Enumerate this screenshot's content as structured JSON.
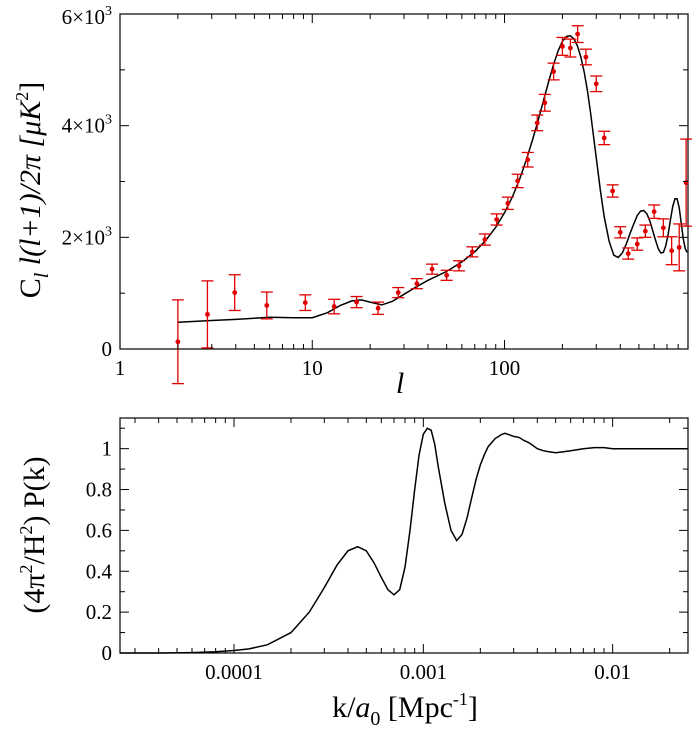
{
  "chart_data": [
    {
      "type": "scatter",
      "xscale": "log",
      "xlim": [
        1,
        900
      ],
      "ylim": [
        0,
        6000
      ],
      "xticks": [
        1,
        10,
        100
      ],
      "xtick_labels": [
        "1",
        "10",
        "100"
      ],
      "yticks": [
        0,
        2000,
        4000,
        6000
      ],
      "ytick_labels": [
        {
          "base": "0",
          "exp": ""
        },
        {
          "base": "2×10",
          "exp": "3"
        },
        {
          "base": "4×10",
          "exp": "3"
        },
        {
          "base": "6×10",
          "exp": "3"
        }
      ],
      "xlabel": "l",
      "ylabel": {
        "c": "C",
        "c_sub": "l",
        "mid": " l(l+1)/2π [μK",
        "sup": "2",
        "end": "]"
      },
      "points": [
        {
          "x": 2,
          "y": 130,
          "err": 750
        },
        {
          "x": 2.85,
          "y": 620,
          "err": 600
        },
        {
          "x": 3.95,
          "y": 1010,
          "err": 320
        },
        {
          "x": 5.8,
          "y": 780,
          "err": 240
        },
        {
          "x": 9.2,
          "y": 830,
          "err": 140
        },
        {
          "x": 13,
          "y": 760,
          "err": 130
        },
        {
          "x": 17,
          "y": 840,
          "err": 100
        },
        {
          "x": 22,
          "y": 730,
          "err": 110
        },
        {
          "x": 28,
          "y": 1010,
          "err": 90
        },
        {
          "x": 35,
          "y": 1170,
          "err": 90
        },
        {
          "x": 42,
          "y": 1430,
          "err": 90
        },
        {
          "x": 50,
          "y": 1320,
          "err": 90
        },
        {
          "x": 58,
          "y": 1490,
          "err": 90
        },
        {
          "x": 68,
          "y": 1740,
          "err": 90
        },
        {
          "x": 79,
          "y": 1960,
          "err": 100
        },
        {
          "x": 91,
          "y": 2320,
          "err": 100
        },
        {
          "x": 104,
          "y": 2610,
          "err": 110
        },
        {
          "x": 117,
          "y": 3010,
          "err": 120
        },
        {
          "x": 132,
          "y": 3390,
          "err": 130
        },
        {
          "x": 148,
          "y": 4050,
          "err": 140
        },
        {
          "x": 162,
          "y": 4410,
          "err": 150
        },
        {
          "x": 180,
          "y": 4970,
          "err": 150
        },
        {
          "x": 200,
          "y": 5420,
          "err": 160
        },
        {
          "x": 220,
          "y": 5390,
          "err": 160
        },
        {
          "x": 240,
          "y": 5640,
          "err": 150
        },
        {
          "x": 265,
          "y": 5230,
          "err": 140
        },
        {
          "x": 300,
          "y": 4750,
          "err": 140
        },
        {
          "x": 330,
          "y": 3780,
          "err": 120
        },
        {
          "x": 365,
          "y": 2830,
          "err": 110
        },
        {
          "x": 400,
          "y": 2090,
          "err": 100
        },
        {
          "x": 440,
          "y": 1710,
          "err": 100
        },
        {
          "x": 490,
          "y": 1880,
          "err": 110
        },
        {
          "x": 540,
          "y": 2110,
          "err": 110
        },
        {
          "x": 600,
          "y": 2460,
          "err": 120
        },
        {
          "x": 670,
          "y": 2170,
          "err": 160
        },
        {
          "x": 740,
          "y": 1760,
          "err": 250
        },
        {
          "x": 810,
          "y": 1820,
          "err": 420
        },
        {
          "x": 880,
          "y": 2980,
          "err": 780
        }
      ],
      "curve": {
        "x": [
          2,
          3,
          4,
          5,
          6,
          8,
          10,
          12,
          14,
          16,
          18,
          20,
          23,
          26,
          30,
          35,
          40,
          50,
          60,
          70,
          80,
          90,
          100,
          110,
          120,
          130,
          140,
          150,
          160,
          170,
          180,
          190,
          200,
          210,
          220,
          230,
          240,
          250,
          260,
          270,
          280,
          290,
          300,
          315,
          330,
          350,
          370,
          390,
          410,
          430,
          450,
          470,
          490,
          510,
          530,
          550,
          570,
          590,
          610,
          630,
          650,
          670,
          690,
          710,
          730,
          750,
          770,
          790,
          810,
          830,
          850,
          870,
          890
        ],
        "y": [
          480,
          510,
          530,
          550,
          570,
          560,
          560,
          650,
          780,
          860,
          880,
          840,
          790,
          850,
          980,
          1120,
          1230,
          1390,
          1560,
          1740,
          1950,
          2180,
          2440,
          2730,
          3050,
          3390,
          3750,
          4110,
          4470,
          4800,
          5100,
          5340,
          5510,
          5600,
          5610,
          5550,
          5420,
          5220,
          4950,
          4620,
          4240,
          3830,
          3420,
          2850,
          2370,
          1930,
          1680,
          1640,
          1720,
          1880,
          2070,
          2240,
          2390,
          2470,
          2480,
          2420,
          2290,
          2120,
          1950,
          1800,
          1720,
          1730,
          1850,
          2060,
          2320,
          2560,
          2690,
          2690,
          2530,
          2260,
          1980,
          1800,
          1730
        ]
      }
    },
    {
      "type": "line",
      "xscale": "log",
      "xlim": [
        2.5e-05,
        0.025
      ],
      "ylim": [
        0,
        1.15
      ],
      "xticks": [
        0.0001,
        0.001,
        0.01
      ],
      "xtick_labels": [
        "0.0001",
        "0.001",
        "0.01"
      ],
      "yticks": [
        0,
        0.2,
        0.4,
        0.6,
        0.8,
        1
      ],
      "ytick_labels": [
        "0",
        "0.2",
        "0.4",
        "0.6",
        "0.8",
        "1"
      ],
      "xlabel": {
        "a": "k/",
        "b": "a",
        "b_sub": "0",
        "c": " [Mpc",
        "c_sup": "-1",
        "d": "]"
      },
      "ylabel": {
        "a": "(4π",
        "a_sup": "2",
        "b": "/H",
        "b_sup": "2",
        "c": ") P(k)"
      },
      "curve": {
        "x": [
          2.5e-05,
          4e-05,
          6e-05,
          8e-05,
          0.0001,
          0.00012,
          0.00015,
          0.0002,
          0.00025,
          0.0003,
          0.00035,
          0.0004,
          0.00045,
          0.0005,
          0.00055,
          0.0006,
          0.00065,
          0.0007,
          0.00075,
          0.0008,
          0.00085,
          0.0009,
          0.00095,
          0.001,
          0.00105,
          0.0011,
          0.00115,
          0.0012,
          0.0013,
          0.0014,
          0.0015,
          0.0016,
          0.0017,
          0.0018,
          0.0019,
          0.002,
          0.0021,
          0.0022,
          0.0023,
          0.0024,
          0.0025,
          0.0026,
          0.0027,
          0.0028,
          0.003,
          0.0032,
          0.0034,
          0.0036,
          0.0038,
          0.004,
          0.0043,
          0.0046,
          0.005,
          0.0055,
          0.006,
          0.007,
          0.008,
          0.009,
          0.01,
          0.012,
          0.015,
          0.02,
          0.025
        ],
        "y": [
          0,
          0,
          0.002,
          0.006,
          0.012,
          0.02,
          0.04,
          0.1,
          0.2,
          0.32,
          0.43,
          0.5,
          0.52,
          0.5,
          0.44,
          0.37,
          0.31,
          0.285,
          0.31,
          0.42,
          0.6,
          0.8,
          0.97,
          1.07,
          1.1,
          1.09,
          1.02,
          0.91,
          0.73,
          0.6,
          0.55,
          0.58,
          0.66,
          0.76,
          0.85,
          0.92,
          0.97,
          1.01,
          1.03,
          1.05,
          1.06,
          1.07,
          1.075,
          1.07,
          1.06,
          1.055,
          1.04,
          1.03,
          1.015,
          1,
          0.99,
          0.985,
          0.98,
          0.985,
          0.99,
          1,
          1.005,
          1.005,
          1,
          1,
          1,
          1,
          1
        ]
      }
    }
  ]
}
